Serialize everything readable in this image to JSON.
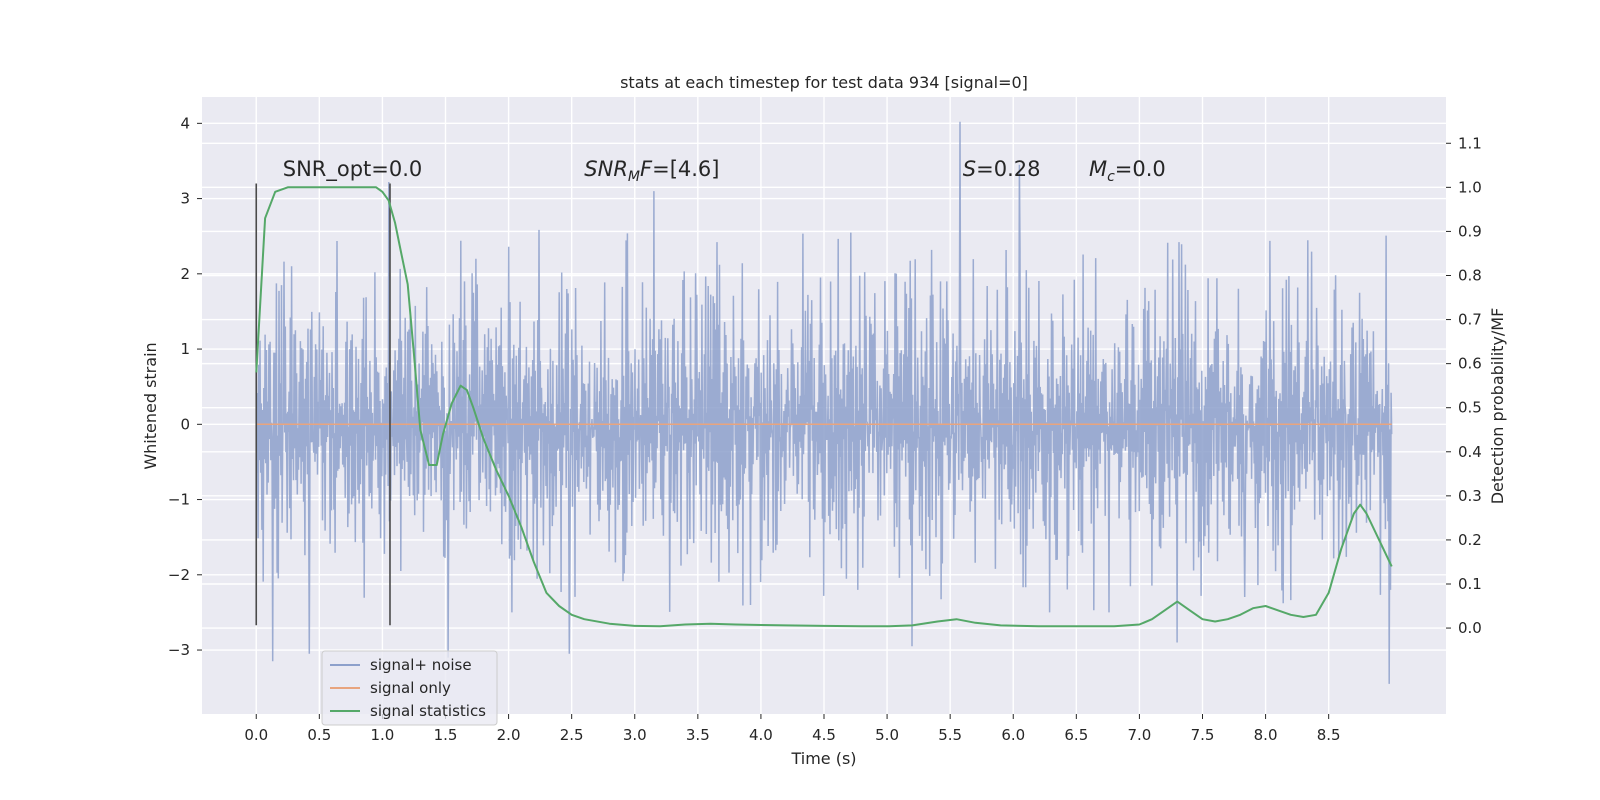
{
  "chart_data": {
    "type": "line",
    "title": "stats at each timestep for test data 934 [signal=0]",
    "xlabel": "Time (s)",
    "ylabel": "Whitened strain",
    "y2label": "Detection probability/MF",
    "xlim": [
      -0.43,
      9.43
    ],
    "ylim": [
      -3.85,
      4.35
    ],
    "y2lim": [
      -0.195,
      1.205
    ],
    "xticks": [
      0.0,
      0.5,
      1.0,
      1.5,
      2.0,
      2.5,
      3.0,
      3.5,
      4.0,
      4.5,
      5.0,
      5.5,
      6.0,
      6.5,
      7.0,
      7.5,
      8.0,
      8.5
    ],
    "xtick_labels": [
      "0.0",
      "0.5",
      "1.0",
      "1.5",
      "2.0",
      "2.5",
      "3.0",
      "3.5",
      "4.0",
      "4.5",
      "5.0",
      "5.5",
      "6.0",
      "6.5",
      "7.0",
      "7.5",
      "8.0",
      "8.5"
    ],
    "yticks": [
      -3,
      -2,
      -1,
      0,
      1,
      2,
      3,
      4
    ],
    "ytick_labels": [
      "−3",
      "−2",
      "−1",
      "0",
      "1",
      "2",
      "3",
      "4"
    ],
    "y2ticks": [
      0.0,
      0.1,
      0.2,
      0.3,
      0.4,
      0.5,
      0.6,
      0.7,
      0.8,
      0.9,
      1.0,
      1.1
    ],
    "y2tick_labels": [
      "0.0",
      "0.1",
      "0.2",
      "0.3",
      "0.4",
      "0.5",
      "0.6",
      "0.7",
      "0.8",
      "0.9",
      "1.0",
      "1.1"
    ],
    "grid": true,
    "legend_position": "lower-left",
    "noise": {
      "name": "signal+ noise",
      "color": "#8da0cb",
      "t_start": 0.0,
      "t_end": 9.0,
      "samples": 1800,
      "band": [
        -1.3,
        1.3
      ],
      "typical_peaks": [
        2.6,
        -2.2
      ],
      "spikes": [
        {
          "x": 5.58,
          "y": 4.02
        },
        {
          "x": 1.05,
          "y": 3.22
        },
        {
          "x": 6.05,
          "y": 3.45
        },
        {
          "x": 3.15,
          "y": 3.1
        },
        {
          "x": 0.13,
          "y": -3.15
        },
        {
          "x": 0.42,
          "y": -3.05
        },
        {
          "x": 1.52,
          "y": -3.1
        },
        {
          "x": 2.48,
          "y": -3.05
        },
        {
          "x": 5.2,
          "y": -2.95
        },
        {
          "x": 8.98,
          "y": -3.45
        },
        {
          "x": 7.3,
          "y": -2.9
        }
      ]
    },
    "signal_only": {
      "name": "signal only",
      "color": "#e8a47e",
      "x": [
        0.0,
        9.0
      ],
      "y": [
        0.0,
        0.0
      ]
    },
    "statistics": {
      "name": "signal statistics",
      "color": "#55a868",
      "axis": "right",
      "x": [
        0.0,
        0.07,
        0.15,
        0.25,
        0.4,
        0.6,
        0.8,
        0.95,
        1.0,
        1.05,
        1.1,
        1.15,
        1.2,
        1.25,
        1.3,
        1.37,
        1.43,
        1.48,
        1.55,
        1.62,
        1.67,
        1.72,
        1.8,
        1.9,
        2.0,
        2.1,
        2.2,
        2.3,
        2.4,
        2.5,
        2.6,
        2.8,
        3.0,
        3.2,
        3.4,
        3.6,
        3.8,
        4.0,
        4.2,
        4.5,
        4.8,
        5.0,
        5.2,
        5.4,
        5.55,
        5.7,
        5.9,
        6.2,
        6.5,
        6.8,
        7.0,
        7.1,
        7.2,
        7.3,
        7.4,
        7.5,
        7.6,
        7.7,
        7.8,
        7.9,
        8.0,
        8.1,
        8.2,
        8.3,
        8.4,
        8.5,
        8.6,
        8.7,
        8.75,
        8.8,
        8.9,
        9.0
      ],
      "y": [
        0.58,
        0.93,
        0.99,
        1.0,
        1.0,
        1.0,
        1.0,
        1.0,
        0.99,
        0.97,
        0.92,
        0.85,
        0.78,
        0.62,
        0.45,
        0.37,
        0.37,
        0.44,
        0.51,
        0.55,
        0.54,
        0.5,
        0.43,
        0.36,
        0.3,
        0.23,
        0.15,
        0.08,
        0.05,
        0.03,
        0.02,
        0.01,
        0.005,
        0.004,
        0.008,
        0.01,
        0.008,
        0.007,
        0.006,
        0.005,
        0.004,
        0.004,
        0.006,
        0.015,
        0.02,
        0.012,
        0.006,
        0.004,
        0.004,
        0.004,
        0.008,
        0.02,
        0.04,
        0.06,
        0.04,
        0.02,
        0.015,
        0.02,
        0.03,
        0.045,
        0.05,
        0.04,
        0.03,
        0.025,
        0.03,
        0.08,
        0.18,
        0.26,
        0.28,
        0.26,
        0.2,
        0.14
      ]
    },
    "vlines": [
      {
        "x": 0.0,
        "ymin": -2.67,
        "ymax": 3.2
      },
      {
        "x": 1.06,
        "ymin": -2.67,
        "ymax": 3.2
      }
    ],
    "annotations": [
      {
        "id": "snr-opt",
        "x": 0.21,
        "parts": [
          {
            "t": "SNR_opt=0.0"
          }
        ]
      },
      {
        "id": "snr-mf",
        "x": 2.6,
        "parts": [
          {
            "t": "SNR",
            "i": true
          },
          {
            "t": "M",
            "i": true,
            "sub": true
          },
          {
            "t": "F",
            "i": true
          },
          {
            "t": "=[4.6]"
          }
        ]
      },
      {
        "id": "s-value",
        "x": 5.6,
        "parts": [
          {
            "t": "S",
            "i": true
          },
          {
            "t": "=0.28"
          }
        ]
      },
      {
        "id": "mc-value",
        "x": 6.6,
        "parts": [
          {
            "t": "M",
            "i": true
          },
          {
            "t": "c",
            "i": true,
            "sub": true
          },
          {
            "t": "=0.0"
          }
        ]
      }
    ],
    "annotation_y": 3.3,
    "legend": [
      {
        "label": "signal+ noise",
        "color": "#8da0cb"
      },
      {
        "label": "signal only",
        "color": "#e8a47e"
      },
      {
        "label": "signal statistics",
        "color": "#55a868"
      }
    ]
  }
}
